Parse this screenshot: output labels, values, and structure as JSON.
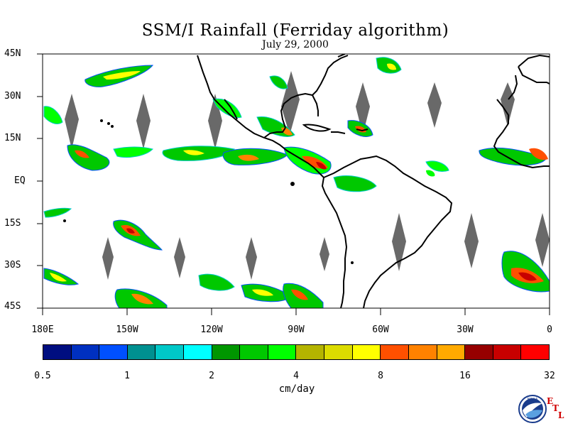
{
  "title": "SSM/I Rainfall (Ferriday algorithm)",
  "subtitle": "July 29, 2000",
  "lat_labels": [
    "45N",
    "30N",
    "15N",
    "EQ",
    "15S",
    "30S",
    "45S"
  ],
  "lon_labels": [
    "180E",
    "150W",
    "120W",
    "90W",
    "60W",
    "30W",
    "0"
  ],
  "colorbar": {
    "colors": [
      "#000e80",
      "#0030c0",
      "#0050ff",
      "#009090",
      "#00c8c8",
      "#00ffff",
      "#009600",
      "#00c800",
      "#00ff00",
      "#b4b400",
      "#dcdc00",
      "#ffff00",
      "#ff5000",
      "#ff8200",
      "#ffaa00",
      "#960000",
      "#c80000",
      "#ff0000"
    ],
    "ticks": [
      "0.5",
      "1",
      "2",
      "4",
      "8",
      "16",
      "32"
    ],
    "unit": "cm/day"
  },
  "logo": {
    "noaa_text": "NOAA",
    "etl_letters": [
      "E",
      "T",
      "L"
    ]
  }
}
